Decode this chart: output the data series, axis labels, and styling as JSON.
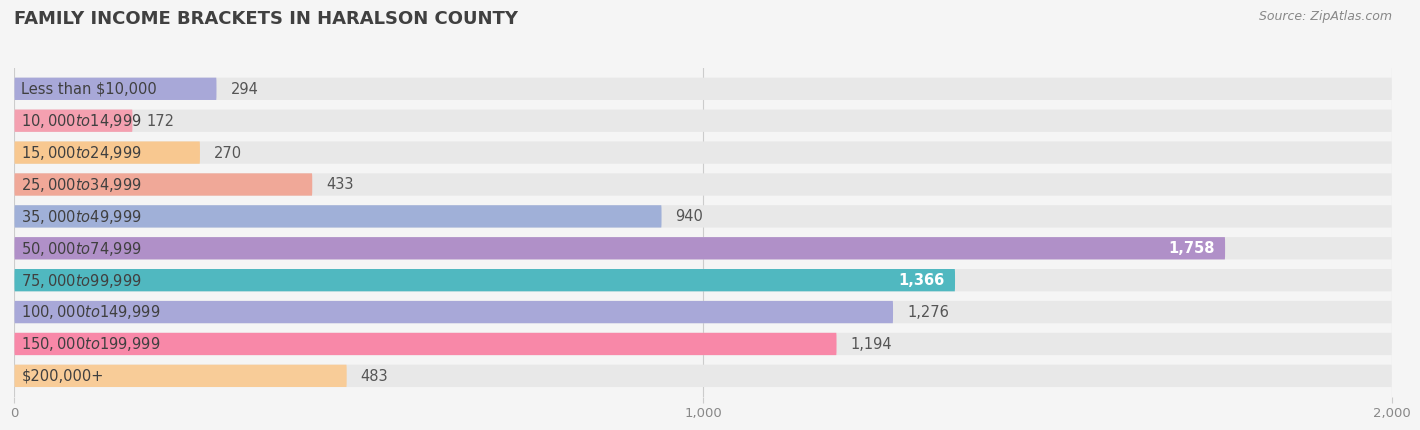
{
  "title": "FAMILY INCOME BRACKETS IN HARALSON COUNTY",
  "source": "Source: ZipAtlas.com",
  "categories": [
    "Less than $10,000",
    "$10,000 to $14,999",
    "$15,000 to $24,999",
    "$25,000 to $34,999",
    "$35,000 to $49,999",
    "$50,000 to $74,999",
    "$75,000 to $99,999",
    "$100,000 to $149,999",
    "$150,000 to $199,999",
    "$200,000+"
  ],
  "values": [
    294,
    172,
    270,
    433,
    940,
    1758,
    1366,
    1276,
    1194,
    483
  ],
  "bar_colors": [
    "#a8a8d8",
    "#f4a0b0",
    "#f8c890",
    "#f0a898",
    "#a0b0d8",
    "#b090c8",
    "#50b8c0",
    "#a8a8d8",
    "#f888a8",
    "#f8cc98"
  ],
  "xlim": [
    0,
    2000
  ],
  "xticks": [
    0,
    1000,
    2000
  ],
  "xticklabels": [
    "0",
    "1,000",
    "2,000"
  ],
  "background_color": "#f5f5f5",
  "bar_bg_color": "#e8e8e8",
  "title_color": "#404040",
  "label_color": "#404040",
  "value_color_outside": "#555555",
  "title_fontsize": 13,
  "label_fontsize": 10.5,
  "value_fontsize": 10.5,
  "tick_fontsize": 9.5,
  "bar_height": 0.7,
  "inside_threshold": 1300
}
